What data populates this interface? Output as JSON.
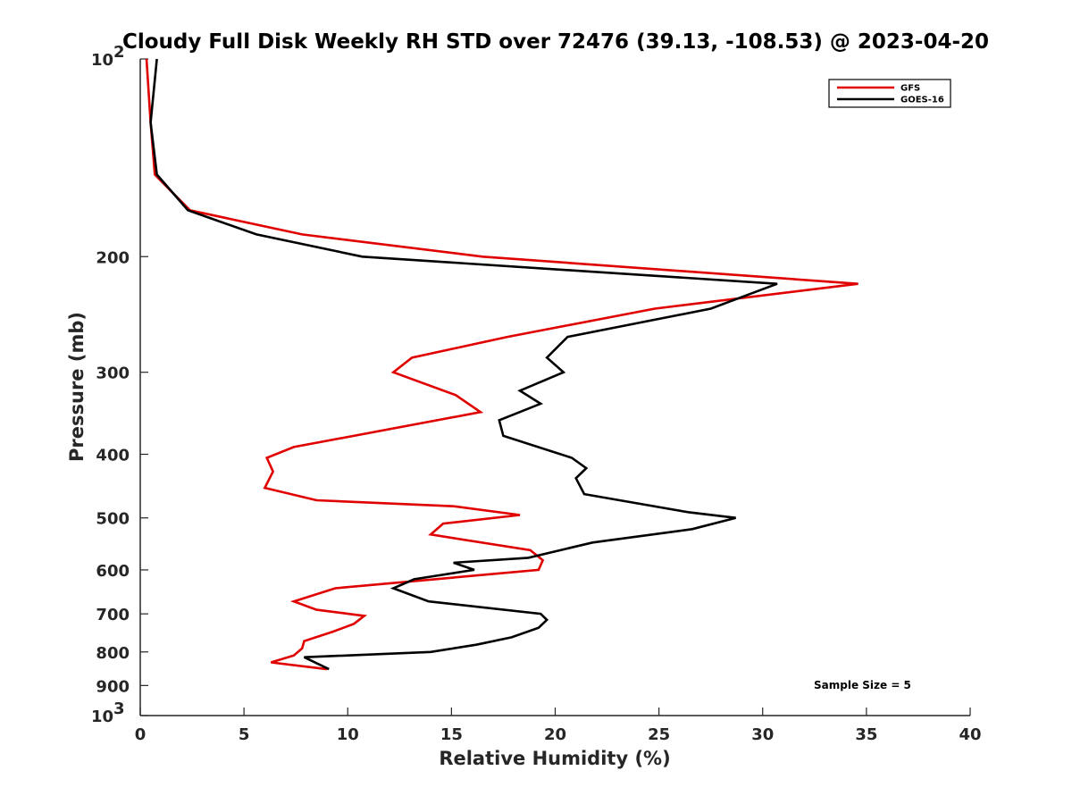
{
  "chart_data": {
    "type": "line",
    "title": "Cloudy Full Disk Weekly RH STD over 72476 (39.13, -108.53) @ 2023-04-20",
    "xlabel": "Relative Humidity (%)",
    "ylabel": "Pressure (mb)",
    "xlim": [
      0,
      40
    ],
    "ylim": [
      100,
      1000
    ],
    "y_scale": "log",
    "y_reversed": true,
    "x_ticks": [
      0,
      5,
      10,
      15,
      20,
      25,
      30,
      35,
      40
    ],
    "x_tick_labels": [
      "0",
      "5",
      "10",
      "15",
      "20",
      "25",
      "30",
      "35",
      "40"
    ],
    "y_tick_labels": [
      {
        "value": 200,
        "label": "200"
      },
      {
        "value": 300,
        "label": "300"
      },
      {
        "value": 400,
        "label": "400"
      },
      {
        "value": 500,
        "label": "500"
      },
      {
        "value": 600,
        "label": "600"
      },
      {
        "value": 700,
        "label": "700"
      },
      {
        "value": 800,
        "label": "800"
      },
      {
        "value": 900,
        "label": "900"
      }
    ],
    "y_tick_power_labels": [
      {
        "value": 100,
        "base": "10",
        "exp": "2"
      },
      {
        "value": 1000,
        "base": "10",
        "exp": "3"
      }
    ],
    "grid": false,
    "legend_position": "top-right",
    "annotation": "Sample Size = 5",
    "series": [
      {
        "name": "GFS",
        "color": "#e00000",
        "points": [
          [
            0.3,
            100
          ],
          [
            0.5,
            125
          ],
          [
            0.7,
            150
          ],
          [
            2.4,
            170
          ],
          [
            7.8,
            185
          ],
          [
            16.5,
            200
          ],
          [
            34.6,
            220
          ],
          [
            24.8,
            240
          ],
          [
            17.7,
            265
          ],
          [
            13.1,
            285
          ],
          [
            12.2,
            300
          ],
          [
            15.2,
            325
          ],
          [
            16.4,
            345
          ],
          [
            7.4,
            390
          ],
          [
            6.1,
            405
          ],
          [
            6.4,
            425
          ],
          [
            6.0,
            450
          ],
          [
            8.5,
            470
          ],
          [
            15.1,
            480
          ],
          [
            18.3,
            495
          ],
          [
            14.6,
            510
          ],
          [
            14.0,
            530
          ],
          [
            18.8,
            560
          ],
          [
            19.4,
            580
          ],
          [
            19.2,
            600
          ],
          [
            9.4,
            640
          ],
          [
            7.4,
            670
          ],
          [
            8.5,
            690
          ],
          [
            10.8,
            705
          ],
          [
            10.3,
            725
          ],
          [
            9.3,
            745
          ],
          [
            7.9,
            770
          ],
          [
            7.8,
            790
          ],
          [
            7.4,
            810
          ],
          [
            6.3,
            830
          ],
          [
            9.0,
            850
          ]
        ]
      },
      {
        "name": "GOES-16",
        "color": "#000000",
        "points": [
          [
            0.8,
            100
          ],
          [
            0.5,
            125
          ],
          [
            0.8,
            150
          ],
          [
            2.3,
            170
          ],
          [
            5.6,
            185
          ],
          [
            10.7,
            200
          ],
          [
            30.7,
            220
          ],
          [
            27.5,
            240
          ],
          [
            20.6,
            265
          ],
          [
            19.6,
            285
          ],
          [
            20.4,
            300
          ],
          [
            18.3,
            320
          ],
          [
            19.3,
            335
          ],
          [
            17.3,
            355
          ],
          [
            17.5,
            375
          ],
          [
            20.8,
            405
          ],
          [
            21.5,
            420
          ],
          [
            21.0,
            435
          ],
          [
            21.4,
            460
          ],
          [
            26.4,
            490
          ],
          [
            28.7,
            500
          ],
          [
            26.6,
            520
          ],
          [
            21.8,
            545
          ],
          [
            18.7,
            575
          ],
          [
            15.1,
            585
          ],
          [
            16.1,
            600
          ],
          [
            13.2,
            620
          ],
          [
            12.2,
            640
          ],
          [
            13.9,
            670
          ],
          [
            19.3,
            700
          ],
          [
            19.6,
            715
          ],
          [
            19.2,
            735
          ],
          [
            17.9,
            760
          ],
          [
            16.2,
            780
          ],
          [
            14.0,
            800
          ],
          [
            7.9,
            815
          ],
          [
            9.1,
            850
          ]
        ]
      }
    ]
  }
}
